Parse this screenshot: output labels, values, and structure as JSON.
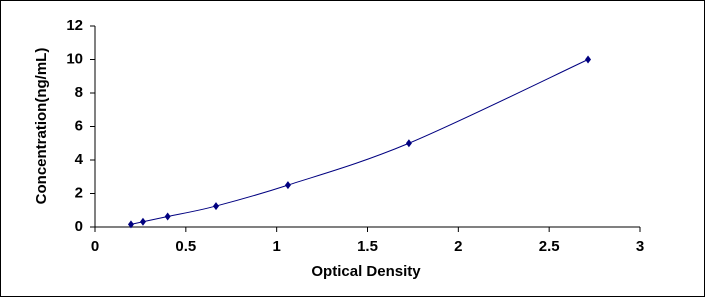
{
  "chart_data": {
    "type": "scatter",
    "x_label": "Optical Density",
    "y_label": "Concentration(ng/mL)",
    "x": [
      0.198,
      0.264,
      0.4,
      0.666,
      1.062,
      1.728,
      2.714
    ],
    "values": [
      0.156,
      0.312,
      0.625,
      1.25,
      2.5,
      5,
      10
    ],
    "color": "#000080",
    "line": true,
    "grid": false,
    "xlim": [
      0,
      3
    ],
    "xticks": [
      0,
      0.5,
      1,
      1.5,
      2,
      2.5,
      3
    ],
    "ylim": [
      0,
      12
    ],
    "yticks": [
      0,
      2,
      4,
      6,
      8,
      10,
      12
    ]
  }
}
